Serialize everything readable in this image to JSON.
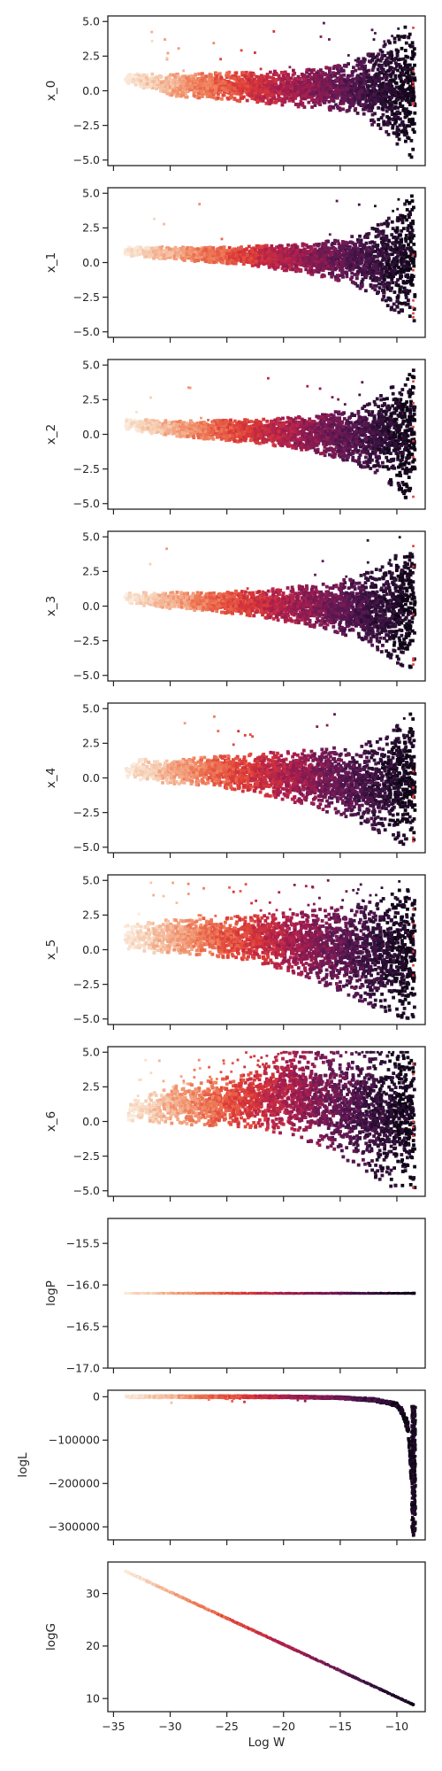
{
  "chart_data": {
    "type": "scatter",
    "x_label": "Log W",
    "x_range": [
      -35.5,
      -7.5
    ],
    "x_ticks": [
      -35,
      -30,
      -25,
      -20,
      -15,
      -10
    ],
    "x_tick_labels": [
      "−35",
      "−30",
      "−25",
      "−20",
      "−15",
      "−10"
    ],
    "colormap": "rocket (light = low Log W, dark = high Log W)",
    "colors": {
      "light": "#f6d7c4",
      "mid": "#e0432f",
      "deep": "#9b1c5a",
      "dark": "#2b0f3a",
      "darkest": "#0d0314"
    },
    "grid": false,
    "legend": "none",
    "panels": [
      {
        "ylabel": "x_0",
        "ylim": [
          -5.4,
          5.4
        ],
        "y_ticks": [
          5.0,
          2.5,
          0.0,
          -2.5,
          -5.0
        ],
        "y_tick_labels": [
          "5.0",
          "2.5",
          "0.0",
          "−2.5",
          "−5.0"
        ],
        "shape": "funnel",
        "envelope": {
          "x": [
            -34,
            -30,
            -26,
            -22,
            -18,
            -14,
            -11,
            -9,
            -8.5
          ],
          "upper": [
            1.2,
            1.2,
            1.3,
            1.4,
            1.5,
            2.0,
            3.5,
            4.8,
            5.0
          ],
          "lower": [
            0.6,
            -0.4,
            -0.6,
            -0.9,
            -1.2,
            -1.6,
            -3.0,
            -4.8,
            -5.0
          ]
        },
        "outliers": 26
      },
      {
        "ylabel": "x_1",
        "ylim": [
          -5.4,
          5.4
        ],
        "y_ticks": [
          5.0,
          2.5,
          0.0,
          -2.5,
          -5.0
        ],
        "y_tick_labels": [
          "5.0",
          "2.5",
          "0.0",
          "−2.5",
          "−5.0"
        ],
        "shape": "funnel",
        "envelope": {
          "x": [
            -34,
            -30,
            -26,
            -22,
            -18,
            -14,
            -11,
            -9,
            -8.5
          ],
          "upper": [
            1.1,
            1.1,
            1.1,
            1.2,
            1.4,
            1.9,
            3.0,
            4.6,
            5.0
          ],
          "lower": [
            0.5,
            0.2,
            0.0,
            -0.3,
            -0.8,
            -1.5,
            -3.0,
            -4.6,
            -5.0
          ]
        },
        "outliers": 12
      },
      {
        "ylabel": "x_2",
        "ylim": [
          -5.4,
          5.4
        ],
        "y_ticks": [
          5.0,
          2.5,
          0.0,
          -2.5,
          -5.0
        ],
        "y_tick_labels": [
          "5.0",
          "2.5",
          "0.0",
          "−2.5",
          "−5.0"
        ],
        "shape": "funnel",
        "envelope": {
          "x": [
            -34,
            -30,
            -26,
            -22,
            -18,
            -14,
            -11,
            -9,
            -8.5
          ],
          "upper": [
            1.1,
            1.0,
            1.0,
            1.1,
            1.3,
            1.8,
            3.0,
            4.6,
            5.0
          ],
          "lower": [
            0.3,
            -0.1,
            -0.4,
            -0.7,
            -1.2,
            -2.0,
            -3.4,
            -4.8,
            -5.0
          ]
        },
        "outliers": 14
      },
      {
        "ylabel": "x_3",
        "ylim": [
          -5.4,
          5.4
        ],
        "y_ticks": [
          5.0,
          2.5,
          0.0,
          -2.5,
          -5.0
        ],
        "y_tick_labels": [
          "5.0",
          "2.5",
          "0.0",
          "−2.5",
          "−5.0"
        ],
        "shape": "funnel",
        "envelope": {
          "x": [
            -34,
            -30,
            -26,
            -22,
            -18,
            -14,
            -11,
            -9,
            -8.5
          ],
          "upper": [
            1.0,
            1.0,
            1.0,
            1.2,
            1.5,
            2.0,
            3.0,
            4.5,
            5.0
          ],
          "lower": [
            0.2,
            -0.2,
            -0.4,
            -0.8,
            -1.4,
            -2.2,
            -3.5,
            -4.8,
            -5.0
          ]
        },
        "outliers": 10
      },
      {
        "ylabel": "x_4",
        "ylim": [
          -5.4,
          5.4
        ],
        "y_ticks": [
          5.0,
          2.5,
          0.0,
          -2.5,
          -5.0
        ],
        "y_tick_labels": [
          "5.0",
          "2.5",
          "0.0",
          "−2.5",
          "−5.0"
        ],
        "shape": "funnel",
        "envelope": {
          "x": [
            -34,
            -30,
            -26,
            -22,
            -18,
            -14,
            -11,
            -9,
            -8.5
          ],
          "upper": [
            1.3,
            1.4,
            1.6,
            1.8,
            2.0,
            2.3,
            3.0,
            4.5,
            5.0
          ],
          "lower": [
            -0.2,
            -0.4,
            -0.6,
            -1.2,
            -2.0,
            -3.0,
            -4.2,
            -5.0,
            -5.0
          ]
        },
        "outliers": 12
      },
      {
        "ylabel": "x_5",
        "ylim": [
          -5.4,
          5.4
        ],
        "y_ticks": [
          5.0,
          2.5,
          0.0,
          -2.5,
          -5.0
        ],
        "y_tick_labels": [
          "5.0",
          "2.5",
          "0.0",
          "−2.5",
          "−5.0"
        ],
        "shape": "funnel",
        "envelope": {
          "x": [
            -34,
            -30,
            -26,
            -22,
            -18,
            -14,
            -11,
            -9,
            -8.5
          ],
          "upper": [
            1.8,
            2.2,
            2.3,
            2.5,
            2.8,
            3.2,
            3.8,
            4.8,
            5.0
          ],
          "lower": [
            -0.1,
            -0.3,
            -0.5,
            -1.0,
            -2.0,
            -3.5,
            -4.6,
            -5.0,
            -5.0
          ]
        },
        "outliers": 45
      },
      {
        "ylabel": "x_6",
        "ylim": [
          -5.4,
          5.4
        ],
        "y_ticks": [
          5.0,
          2.5,
          0.0,
          -2.5,
          -5.0
        ],
        "y_tick_labels": [
          "5.0",
          "2.5",
          "0.0",
          "−2.5",
          "−5.0"
        ],
        "shape": "funnel",
        "envelope": {
          "x": [
            -34,
            -30,
            -26,
            -22,
            -20,
            -18,
            -14,
            -11,
            -9,
            -8.5
          ],
          "upper": [
            1.5,
            2.5,
            3.0,
            3.8,
            5.0,
            5.0,
            5.0,
            5.0,
            5.0,
            5.0
          ],
          "lower": [
            -0.1,
            -0.2,
            -0.3,
            -0.6,
            -0.9,
            -1.4,
            -3.0,
            -4.8,
            -5.0,
            -5.0
          ]
        },
        "outliers": 80
      },
      {
        "ylabel": "logP",
        "ylim": [
          -17.0,
          -15.2
        ],
        "y_ticks": [
          -15.5,
          -16.0,
          -16.5,
          -17.0
        ],
        "y_tick_labels": [
          "−15.5",
          "−16.0",
          "−16.5",
          "−17.0"
        ],
        "shape": "constant",
        "value": -16.1
      },
      {
        "ylabel": "logL",
        "ylim": [
          -330000,
          15000
        ],
        "y_ticks": [
          0,
          -100000,
          -200000,
          -300000
        ],
        "y_tick_labels": [
          "0",
          "−100000",
          "−200000",
          "−300000"
        ],
        "shape": "tail",
        "curve": {
          "x": [
            -34,
            -30,
            -25,
            -20,
            -15,
            -12,
            -10,
            -9.5,
            -9,
            -8.7,
            -8.5
          ],
          "y": [
            0,
            0,
            0,
            -200,
            -2000,
            -6000,
            -15000,
            -30000,
            -60000,
            -150000,
            -310000
          ]
        },
        "outliers": 12
      },
      {
        "ylabel": "logG",
        "ylim": [
          7.5,
          36
        ],
        "y_ticks": [
          30,
          20,
          10
        ],
        "y_tick_labels": [
          "30",
          "20",
          "10"
        ],
        "shape": "line",
        "line": {
          "x": [
            -34,
            -8.5
          ],
          "y": [
            34.3,
            8.8
          ]
        }
      }
    ]
  }
}
